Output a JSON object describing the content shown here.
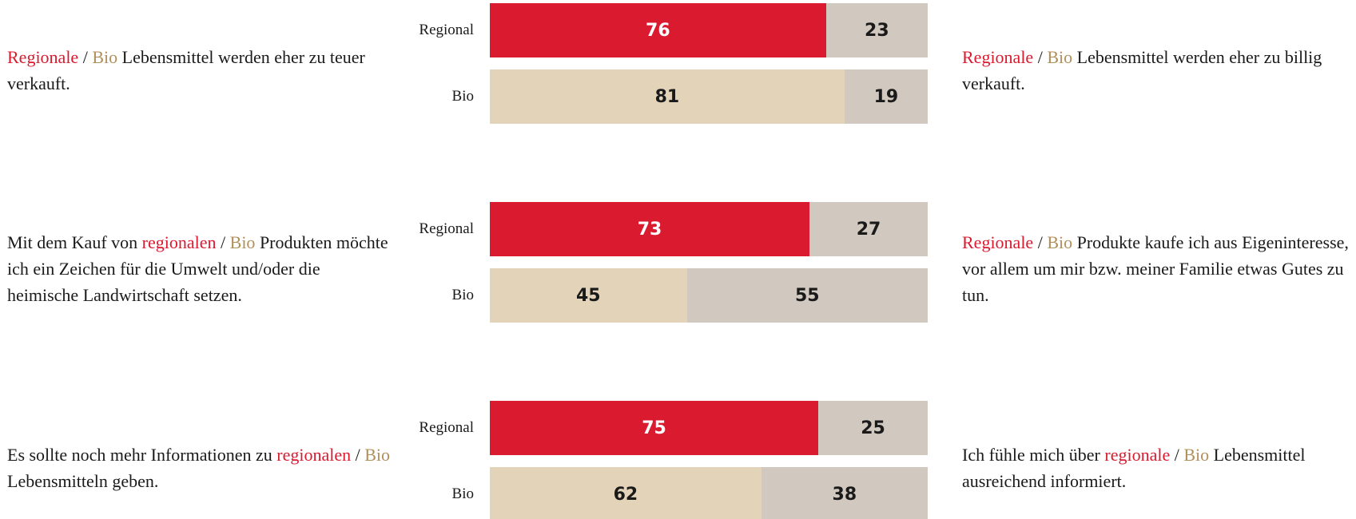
{
  "chart_data": {
    "type": "stacked-bar",
    "colors": {
      "regional": "#d91a2f",
      "bio": "#b08f5a",
      "text": "#1a1a1a",
      "regional_bar": "#d91a2f",
      "bio_bar": "#e3d4b9",
      "rest_bar": "#d1c8bf"
    },
    "groups": [
      {
        "left": [
          {
            "text": "Regionale",
            "color": "regional"
          },
          {
            "text": " / ",
            "color": "text"
          },
          {
            "text": "Bio",
            "color": "bio"
          },
          {
            "text": " Lebensmittel werden eher zu teuer verkauft.",
            "color": "text"
          }
        ],
        "right": [
          {
            "text": "Regionale",
            "color": "regional"
          },
          {
            "text": " / ",
            "color": "text"
          },
          {
            "text": "Bio",
            "color": "bio"
          },
          {
            "text": " Lebensmittel werden eher zu billig verkauft.",
            "color": "text"
          }
        ],
        "bars": [
          {
            "name": "Regional",
            "color": "regional_bar",
            "values": [
              76,
              23
            ]
          },
          {
            "name": "Bio",
            "color": "bio_bar",
            "values": [
              81,
              19
            ]
          }
        ]
      },
      {
        "left": [
          {
            "text": "Mit dem Kauf von ",
            "color": "text"
          },
          {
            "text": "regionalen",
            "color": "regional"
          },
          {
            "text": " / ",
            "color": "text"
          },
          {
            "text": "Bio",
            "color": "bio"
          },
          {
            "text": " Produkten möchte ich ein Zeichen für die Umwelt und/oder die heimische Landwirtschaft setzen.",
            "color": "text"
          }
        ],
        "right": [
          {
            "text": "Regionale",
            "color": "regional"
          },
          {
            "text": " / ",
            "color": "text"
          },
          {
            "text": "Bio",
            "color": "bio"
          },
          {
            "text": " Produkte kaufe ich aus Eigeninteresse, vor allem um mir bzw. meiner Familie etwas Gutes zu tun.",
            "color": "text"
          }
        ],
        "bars": [
          {
            "name": "Regional",
            "color": "regional_bar",
            "values": [
              73,
              27
            ]
          },
          {
            "name": "Bio",
            "color": "bio_bar",
            "values": [
              45,
              55
            ]
          }
        ]
      },
      {
        "left": [
          {
            "text": "Es sollte noch mehr Informationen zu ",
            "color": "text"
          },
          {
            "text": "regionalen",
            "color": "regional"
          },
          {
            "text": " / ",
            "color": "text"
          },
          {
            "text": "Bio",
            "color": "bio"
          },
          {
            "text": " Lebensmitteln geben.",
            "color": "text"
          }
        ],
        "right": [
          {
            "text": "Ich fühle mich über ",
            "color": "text"
          },
          {
            "text": "regionale",
            "color": "regional"
          },
          {
            "text": " / ",
            "color": "text"
          },
          {
            "text": "Bio",
            "color": "bio"
          },
          {
            "text": " Lebensmittel ausreichend informiert.",
            "color": "text"
          }
        ],
        "bars": [
          {
            "name": "Regional",
            "color": "regional_bar",
            "values": [
              75,
              25
            ]
          },
          {
            "name": "Bio",
            "color": "bio_bar",
            "values": [
              62,
              38
            ]
          }
        ]
      }
    ]
  }
}
